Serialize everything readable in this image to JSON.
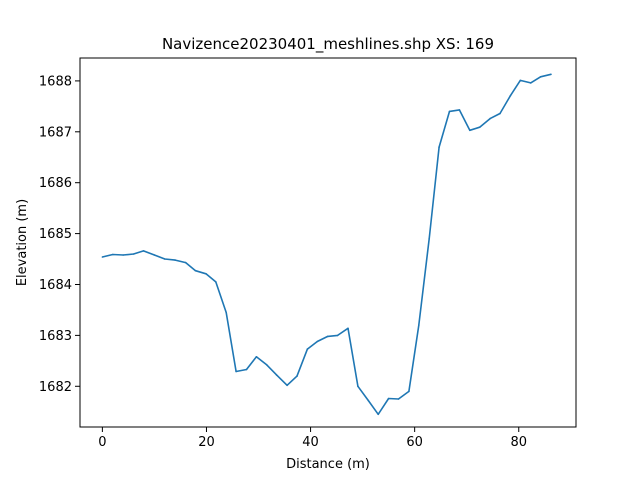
{
  "chart_data": {
    "type": "line",
    "title": "Navizence20230401_meshlines.shp XS: 169",
    "xlabel": "Distance (m)",
    "ylabel": "Elevation (m)",
    "xlim": [
      -4.3,
      91
    ],
    "ylim": [
      1681.2,
      1688.45
    ],
    "xticks": [
      0,
      20,
      40,
      60,
      80
    ],
    "yticks": [
      1682,
      1683,
      1684,
      1685,
      1686,
      1687,
      1688
    ],
    "grid": false,
    "line_color": "#1f77b4",
    "series": [
      {
        "x": [
          0,
          2,
          4,
          6,
          7.9,
          10,
          12,
          14,
          16,
          17.9,
          19.9,
          21.8,
          23.8,
          25.7,
          27.7,
          29.6,
          31.6,
          33.5,
          35.5,
          37.4,
          39.4,
          41.3,
          43.3,
          45.2,
          47.2,
          49.1,
          51.1,
          53.0,
          55.0,
          56.9,
          58.9,
          60.8,
          62.8,
          64.7,
          66.7,
          68.6,
          70.6,
          72.5,
          74.5,
          76.4,
          78.4,
          80.3,
          82.3,
          84.2,
          86.2
        ],
        "y": [
          1684.54,
          1684.59,
          1684.58,
          1684.6,
          1684.66,
          1684.58,
          1684.5,
          1684.48,
          1684.43,
          1684.27,
          1684.21,
          1684.05,
          1683.45,
          1682.29,
          1682.33,
          1682.58,
          1682.42,
          1682.22,
          1682.02,
          1682.2,
          1682.73,
          1682.88,
          1682.98,
          1683.0,
          1683.14,
          1682.0,
          1681.72,
          1681.45,
          1681.76,
          1681.75,
          1681.9,
          1683.2,
          1684.9,
          1686.7,
          1687.4,
          1687.43,
          1687.03,
          1687.09,
          1687.26,
          1687.36,
          1687.71,
          1688.01,
          1687.96,
          1688.08,
          1688.13
        ]
      }
    ]
  }
}
